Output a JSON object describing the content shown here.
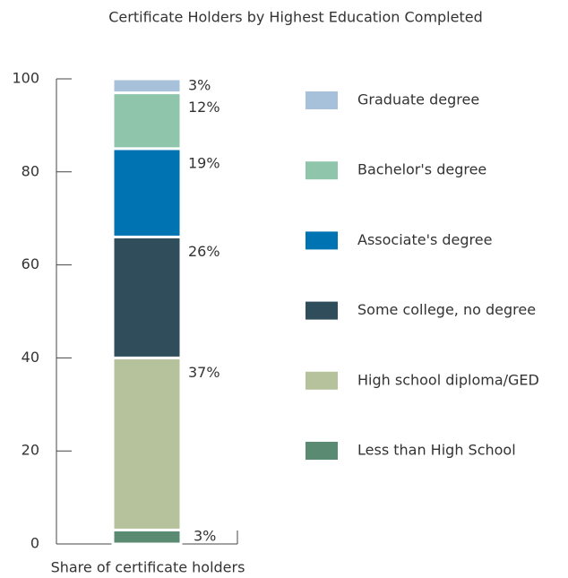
{
  "chart_data": {
    "type": "stacked_bar",
    "title": "Certificate Holders by Highest Education Completed",
    "x_label": "Share of certificate holders",
    "categories": [
      null
    ],
    "series": [
      {
        "name": "Less than High School",
        "color": "#5b8a73",
        "values": [
          3
        ],
        "value_labels": [
          "3%"
        ]
      },
      {
        "name": "High school diploma/GED",
        "color": "#b6c29b",
        "values": [
          37
        ],
        "value_labels": [
          "37%"
        ]
      },
      {
        "name": "Some college, no degree",
        "color": "#2f4d5a",
        "values": [
          26
        ],
        "value_labels": [
          "26%"
        ]
      },
      {
        "name": "Associate's degree",
        "color": "#0073b2",
        "values": [
          19
        ],
        "value_labels": [
          "19%"
        ]
      },
      {
        "name": "Bachelor's degree",
        "color": "#8ec5ab",
        "values": [
          12
        ],
        "value_labels": [
          "12%"
        ]
      },
      {
        "name": "Graduate degree",
        "color": "#a7c1da",
        "values": [
          3
        ],
        "value_labels": [
          "3%"
        ]
      }
    ],
    "ylim": [
      0,
      100
    ],
    "yticks": [
      0,
      20,
      40,
      60,
      80,
      100
    ],
    "legend": "right"
  }
}
